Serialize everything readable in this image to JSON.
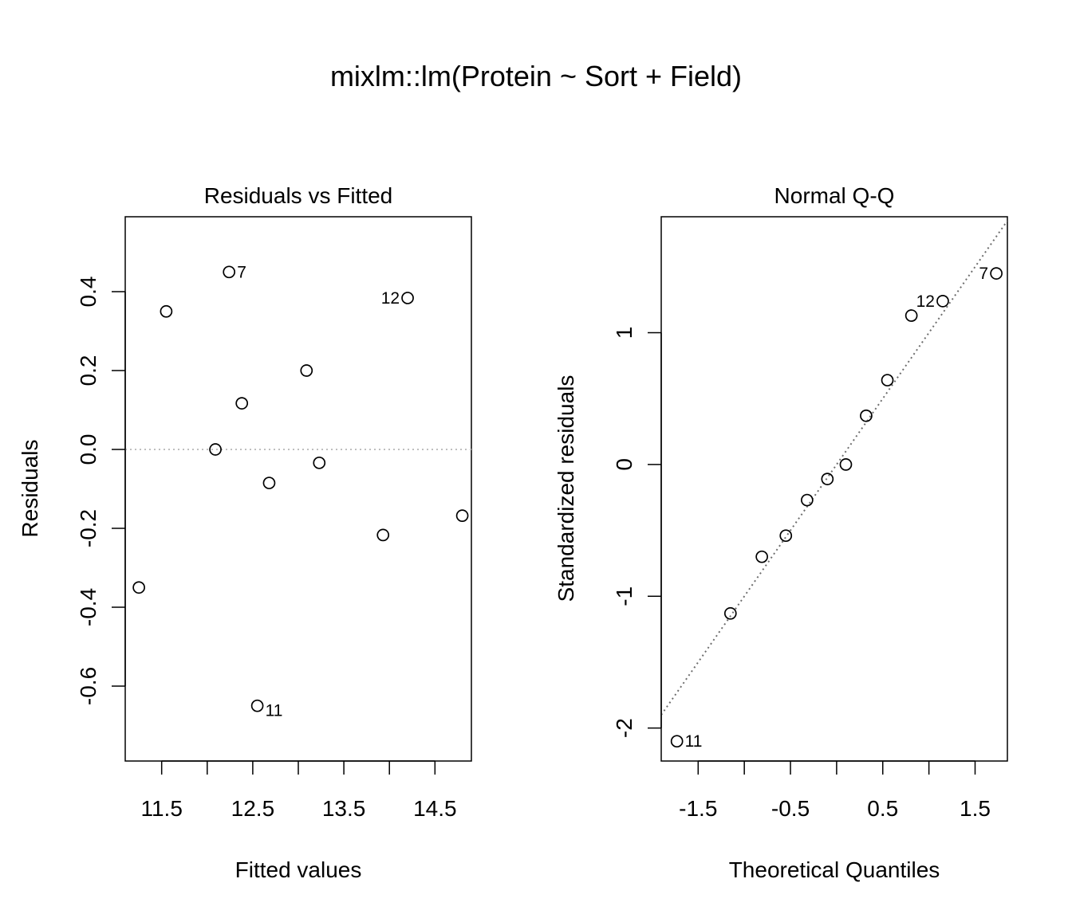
{
  "title": "mixlm::lm(Protein ~ Sort + Field)",
  "chart_data": [
    {
      "type": "scatter",
      "title": "Residuals vs Fitted",
      "xlabel": "Fitted values",
      "ylabel": "Residuals",
      "xlim": [
        11.1,
        14.9
      ],
      "ylim": [
        -0.79,
        0.59
      ],
      "xticks": [
        11.5,
        12.0,
        12.5,
        13.0,
        13.5,
        14.0,
        14.5
      ],
      "xtick_labels": [
        "11.5",
        "",
        "12.5",
        "",
        "13.5",
        "",
        "14.5"
      ],
      "yticks": [
        -0.6,
        -0.4,
        -0.2,
        0.0,
        0.2,
        0.4
      ],
      "ytick_labels": [
        "-0.6",
        "-0.4",
        "-0.2",
        "0.0",
        "0.2",
        "0.4"
      ],
      "reference_line": {
        "y": 0,
        "style": "dotted",
        "color": "#bebebe"
      },
      "points": [
        {
          "x": 11.25,
          "y": -0.35,
          "label": ""
        },
        {
          "x": 11.55,
          "y": 0.35,
          "label": ""
        },
        {
          "x": 12.09,
          "y": 0.0,
          "label": ""
        },
        {
          "x": 12.24,
          "y": 0.45,
          "label": "7",
          "label_pos": "right"
        },
        {
          "x": 12.38,
          "y": 0.117,
          "label": ""
        },
        {
          "x": 12.55,
          "y": -0.65,
          "label": "11",
          "label_pos": "below-right"
        },
        {
          "x": 12.68,
          "y": -0.085,
          "label": ""
        },
        {
          "x": 13.09,
          "y": 0.2,
          "label": ""
        },
        {
          "x": 13.23,
          "y": -0.034,
          "label": ""
        },
        {
          "x": 13.93,
          "y": -0.217,
          "label": ""
        },
        {
          "x": 14.2,
          "y": 0.384,
          "label": "12",
          "label_pos": "left"
        },
        {
          "x": 14.8,
          "y": -0.168,
          "label": ""
        }
      ]
    },
    {
      "type": "scatter",
      "title": "Normal Q-Q",
      "xlabel": "Theoretical Quantiles",
      "ylabel": "Standardized residuals",
      "xlim": [
        -1.9,
        1.85
      ],
      "ylim": [
        -2.25,
        1.88
      ],
      "xticks": [
        -1.5,
        -1.0,
        -0.5,
        0.0,
        0.5,
        1.0,
        1.5
      ],
      "xtick_labels": [
        "-1.5",
        "",
        "-0.5",
        "",
        "0.5",
        "",
        "1.5"
      ],
      "yticks": [
        -2,
        -1,
        0,
        1
      ],
      "ytick_labels": [
        "-2",
        "-1",
        "0",
        "1"
      ],
      "reference_line": {
        "intercept": 0.0,
        "slope": 1.0,
        "style": "dotted",
        "color": "#6e6e6e"
      },
      "points": [
        {
          "x": -1.73,
          "y": -2.1,
          "label": "11",
          "label_pos": "right"
        },
        {
          "x": -1.15,
          "y": -1.13,
          "label": ""
        },
        {
          "x": -0.81,
          "y": -0.7,
          "label": ""
        },
        {
          "x": -0.55,
          "y": -0.54,
          "label": ""
        },
        {
          "x": -0.32,
          "y": -0.27,
          "label": ""
        },
        {
          "x": -0.1,
          "y": -0.11,
          "label": ""
        },
        {
          "x": 0.1,
          "y": 0.0,
          "label": ""
        },
        {
          "x": 0.32,
          "y": 0.37,
          "label": ""
        },
        {
          "x": 0.55,
          "y": 0.64,
          "label": ""
        },
        {
          "x": 0.81,
          "y": 1.13,
          "label": ""
        },
        {
          "x": 1.15,
          "y": 1.24,
          "label": "12",
          "label_pos": "left"
        },
        {
          "x": 1.73,
          "y": 1.45,
          "label": "7",
          "label_pos": "left"
        }
      ]
    }
  ]
}
